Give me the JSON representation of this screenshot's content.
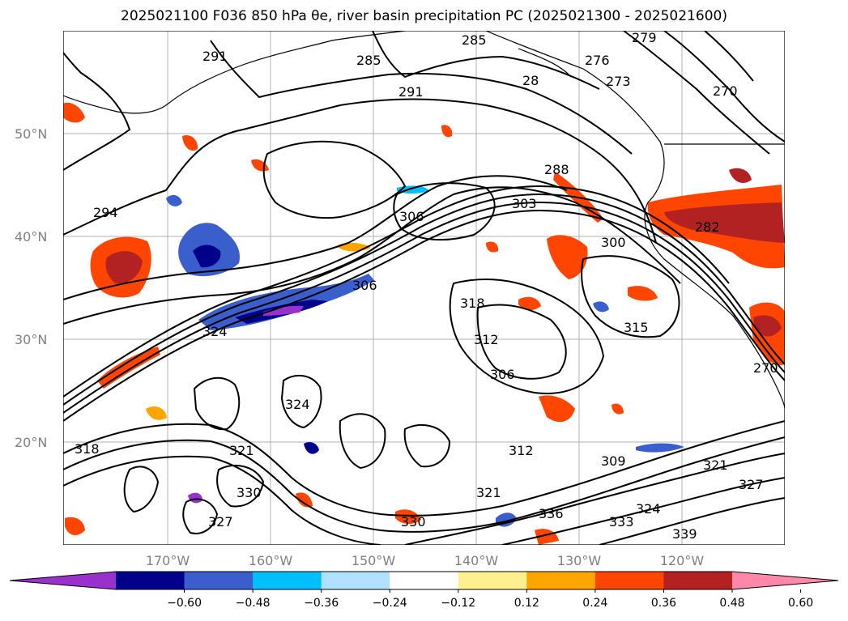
{
  "title": "2025021100 F036 850 hPa θe, river basin precipitation PC (2025021300 - 2025021600)",
  "map": {
    "lat_labels": [
      "50°N",
      "40°N",
      "30°N",
      "20°N"
    ],
    "lon_labels": [
      "170°W",
      "160°W",
      "150°W",
      "140°W",
      "130°W",
      "120°W"
    ],
    "contour_labels": [
      "285",
      "279",
      "270",
      "276",
      "273",
      "291",
      "285",
      "291",
      "28",
      "288",
      "294",
      "306",
      "303",
      "300",
      "306",
      "318",
      "315",
      "312",
      "306",
      "312",
      "309",
      "321",
      "327",
      "324",
      "330",
      "336",
      "333",
      "339",
      "318",
      "321",
      "324",
      "327",
      "330",
      "321",
      "282",
      "324",
      "270"
    ]
  },
  "colorbar": {
    "colors": [
      "#9932cc",
      "#00008b",
      "#3a5fcd",
      "#00bfff",
      "#b0e2ff",
      "#ffffff",
      "#fff08f",
      "#ffa500",
      "#ff4500",
      "#b22222",
      "#ff88aa"
    ],
    "tick_labels": [
      "−0.60",
      "−0.48",
      "−0.36",
      "−0.24",
      "−0.12",
      "0.12",
      "0.24",
      "0.36",
      "0.48",
      "0.60"
    ]
  }
}
